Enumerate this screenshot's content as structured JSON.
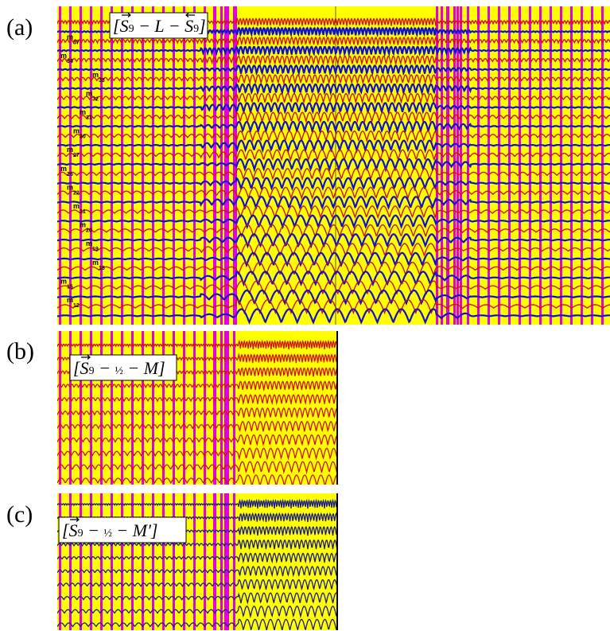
{
  "panels": [
    {
      "id": "a",
      "label": "(a)",
      "equation_parts": [
        "[",
        "S",
        "9",
        " − L − ",
        "S",
        "9",
        "]"
      ],
      "equation": "[S⃗9 − L − S⃖9]",
      "trace_colors": [
        "red",
        "blue"
      ],
      "mode_labels": [
        "m48",
        "m37",
        "m34",
        "m33",
        "m32",
        "m31",
        "m30",
        "m27",
        "m26",
        "m22",
        "m21",
        "m20",
        "m19",
        "m18",
        "m15",
        "m12"
      ]
    },
    {
      "id": "b",
      "label": "(b)",
      "equation": "[S⃗9 − ½ − M]",
      "trace_colors": [
        "red"
      ]
    },
    {
      "id": "c",
      "label": "(c)",
      "equation": "[S⃗9 − ½ − M′]",
      "trace_colors": [
        "blue"
      ]
    }
  ],
  "colors": {
    "background": "#ffff00",
    "stripe": "#e000e0",
    "trace_red": "#d01010",
    "trace_blue": "#1010d0",
    "trace_c": "#1a1a8a"
  }
}
